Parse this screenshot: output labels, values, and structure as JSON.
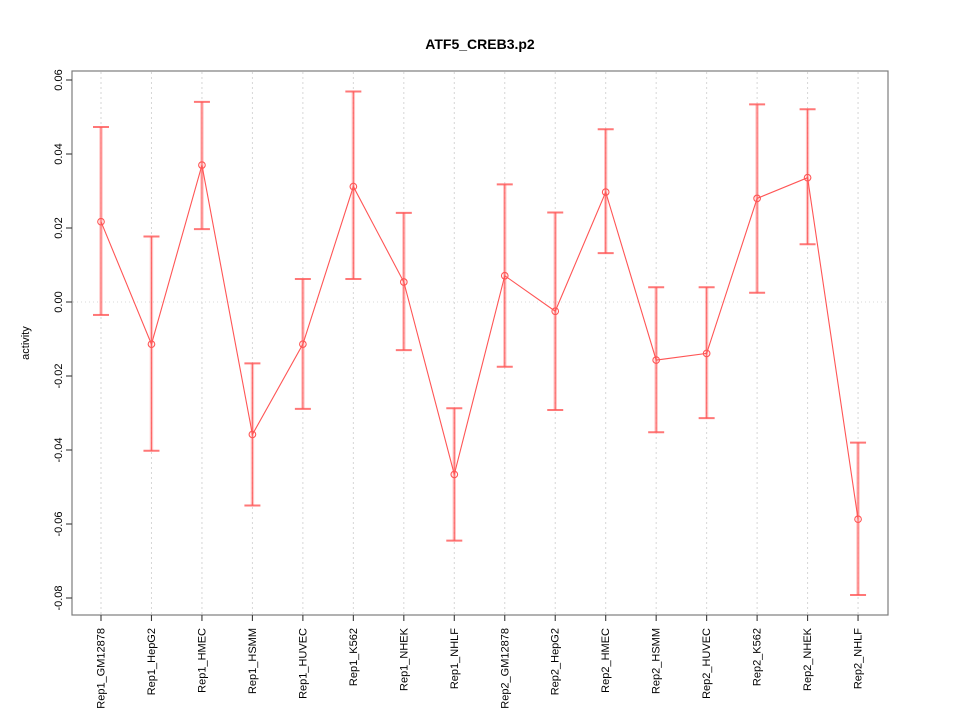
{
  "chart_data": {
    "type": "line",
    "title": "ATF5_CREB3.p2",
    "ylabel": "activity",
    "xlabel": "",
    "ylim": [
      -0.0846,
      0.0624
    ],
    "grid": "vertical-dotted-gridlines-per-category-plus-dotted-zero-line",
    "legend_position": "none",
    "marker": "open-circle",
    "yticks": [
      {
        "value": 0.06,
        "label": "0.06"
      },
      {
        "value": 0.04,
        "label": "0.04"
      },
      {
        "value": 0.02,
        "label": "0.02"
      },
      {
        "value": 0.0,
        "label": "0.00"
      },
      {
        "value": -0.02,
        "label": "-0.02"
      },
      {
        "value": -0.04,
        "label": "-0.04"
      },
      {
        "value": -0.06,
        "label": "-0.06"
      },
      {
        "value": -0.08,
        "label": "-0.08"
      }
    ],
    "categories": [
      "Rep1_GM12878",
      "Rep1_HepG2",
      "Rep1_HMEC",
      "Rep1_HSMM",
      "Rep1_HUVEC",
      "Rep1_K562",
      "Rep1_NHEK",
      "Rep1_NHLF",
      "Rep2_GM12878",
      "Rep2_HepG2",
      "Rep2_HMEC",
      "Rep2_HSMM",
      "Rep2_HUVEC",
      "Rep2_K562",
      "Rep2_NHEK",
      "Rep2_NHLF"
    ],
    "series": [
      {
        "name": "activity",
        "color": "#ff5555",
        "values": [
          0.0217,
          -0.0114,
          0.037,
          -0.0358,
          -0.0114,
          0.0312,
          0.0054,
          -0.0466,
          0.0071,
          -0.0025,
          0.0297,
          -0.0157,
          -0.0139,
          0.028,
          0.0336,
          -0.0587
        ],
        "ci_high": [
          0.0473,
          0.0177,
          0.0541,
          -0.0166,
          0.0062,
          0.0569,
          0.0241,
          -0.0287,
          0.0318,
          0.0242,
          0.0467,
          0.004,
          0.004,
          0.0534,
          0.0521,
          -0.038
        ],
        "ci_low": [
          -0.0035,
          -0.0402,
          0.0197,
          -0.055,
          -0.0289,
          0.0062,
          -0.013,
          -0.0645,
          -0.0175,
          -0.0292,
          0.0132,
          -0.0352,
          -0.0314,
          0.0025,
          0.0156,
          -0.0792
        ]
      }
    ]
  }
}
